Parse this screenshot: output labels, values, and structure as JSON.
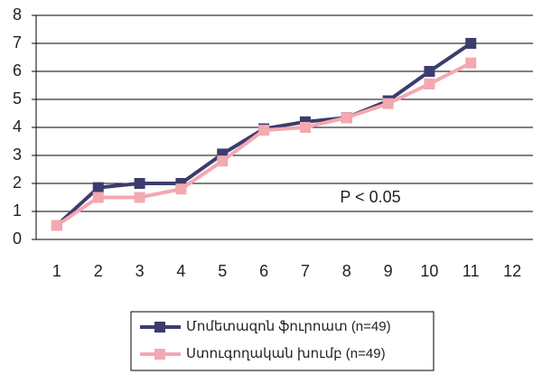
{
  "chart_data": {
    "type": "line",
    "categories": [
      "1",
      "2",
      "3",
      "4",
      "5",
      "6",
      "7",
      "8",
      "9",
      "10",
      "11",
      "12"
    ],
    "series": [
      {
        "name": "Մոմետազոն ֆուրոատ (n=49)",
        "color": "#3c3c6e",
        "values": [
          0.5,
          1.85,
          2.0,
          2.0,
          3.05,
          3.95,
          4.2,
          4.35,
          4.95,
          6.0,
          7.0,
          null
        ]
      },
      {
        "name": "Ստուգողական խումբ (n=49)",
        "color": "#f4a8b0",
        "values": [
          0.5,
          1.5,
          1.5,
          1.8,
          2.8,
          3.9,
          4.0,
          4.35,
          4.85,
          5.55,
          6.3,
          null
        ]
      }
    ],
    "ylim": [
      0,
      8
    ],
    "yticks": [
      0,
      1,
      2,
      3,
      4,
      5,
      6,
      7,
      8
    ],
    "grid": true,
    "annotation": "P <  0.05"
  }
}
